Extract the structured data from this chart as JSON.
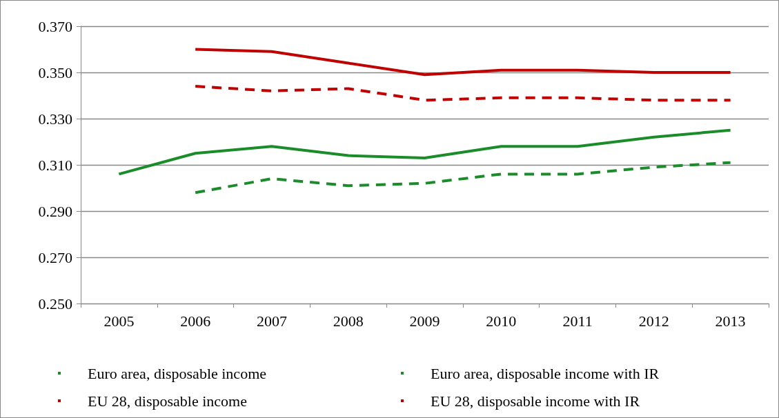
{
  "chart_data": {
    "type": "line",
    "categories": [
      "2005",
      "2006",
      "2007",
      "2008",
      "2009",
      "2010",
      "2011",
      "2012",
      "2013"
    ],
    "series": [
      {
        "name": "Euro area, disposable income",
        "color": "#1a8c2a",
        "line_style": "solid",
        "values": [
          0.306,
          0.315,
          0.318,
          0.314,
          0.313,
          0.318,
          0.318,
          0.322,
          0.325
        ]
      },
      {
        "name": "Euro area, disposable income with IR",
        "color": "#1a8c2a",
        "line_style": "dashed",
        "values": [
          null,
          0.298,
          0.304,
          0.301,
          0.302,
          0.306,
          0.306,
          0.309,
          0.311
        ]
      },
      {
        "name": "EU 28, disposable income",
        "color": "#c00000",
        "line_style": "solid",
        "values": [
          null,
          0.36,
          0.359,
          0.354,
          0.349,
          0.351,
          0.351,
          0.35,
          0.35
        ]
      },
      {
        "name": "EU 28, disposable income with IR",
        "color": "#c00000",
        "line_style": "dashed",
        "values": [
          null,
          0.344,
          0.342,
          0.343,
          0.338,
          0.339,
          0.339,
          0.338,
          0.338
        ]
      }
    ],
    "ylim": [
      0.25,
      0.37
    ],
    "yticks": [
      {
        "value": 0.25,
        "label": "0.250"
      },
      {
        "value": 0.27,
        "label": "0.270"
      },
      {
        "value": 0.29,
        "label": "0.290"
      },
      {
        "value": 0.31,
        "label": "0.310"
      },
      {
        "value": 0.33,
        "label": "0.330"
      },
      {
        "value": 0.35,
        "label": "0.350"
      },
      {
        "value": 0.37,
        "label": "0.370"
      }
    ],
    "grid": "y",
    "legend": "bottom",
    "marker": "none"
  }
}
